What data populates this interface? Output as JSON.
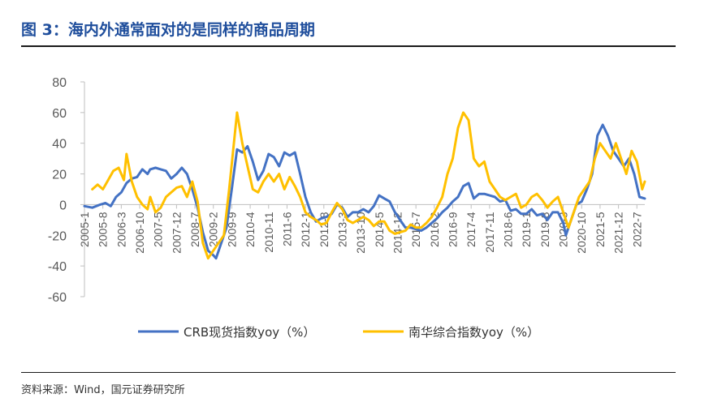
{
  "figure": {
    "title": "图 3：海内外通常面对的是同样的商品周期",
    "source": "资料来源：Wind，国元证券研究所"
  },
  "colors": {
    "crb": "#4472c4",
    "nanhua": "#ffc000",
    "axis": "#bfbfbf",
    "title": "#1f4e9c"
  },
  "chart_data": {
    "type": "line",
    "title": "",
    "xlabel": "",
    "ylabel": "",
    "ylim": [
      -60,
      80
    ],
    "yticks": [
      80,
      60,
      40,
      20,
      0,
      -20,
      -40,
      -60
    ],
    "xlim": [
      "2005-01",
      "2022-10"
    ],
    "xtick_labels": [
      "2005-1",
      "2005-8",
      "2006-3",
      "2006-10",
      "2007-5",
      "2007-12",
      "2008-7",
      "2009-2",
      "2009-9",
      "2010-4",
      "2010-11",
      "2011-6",
      "2012-1",
      "2012-8",
      "2013-3",
      "2013-10",
      "2014-5",
      "2014-12",
      "2015-7",
      "2016-2",
      "2016-9",
      "2017-4",
      "2017-11",
      "2018-6",
      "2019-1",
      "2019-8",
      "2020-3",
      "2020-10",
      "2021-5",
      "2021-12",
      "2022-7"
    ],
    "grid": false,
    "legend": "bottom",
    "series": [
      {
        "name": "CRB现货指数yoy（%）",
        "color": "#4472c4",
        "points": [
          [
            "2005-01",
            -1
          ],
          [
            "2005-04",
            -2
          ],
          [
            "2005-07",
            0
          ],
          [
            "2005-09",
            1
          ],
          [
            "2005-11",
            -1
          ],
          [
            "2006-01",
            5
          ],
          [
            "2006-03",
            8
          ],
          [
            "2006-05",
            14
          ],
          [
            "2006-07",
            17
          ],
          [
            "2006-09",
            18
          ],
          [
            "2006-11",
            23
          ],
          [
            "2007-01",
            20
          ],
          [
            "2007-02",
            23
          ],
          [
            "2007-04",
            24
          ],
          [
            "2007-06",
            23
          ],
          [
            "2007-08",
            22
          ],
          [
            "2007-10",
            17
          ],
          [
            "2007-12",
            20
          ],
          [
            "2008-02",
            24
          ],
          [
            "2008-04",
            20
          ],
          [
            "2008-06",
            10
          ],
          [
            "2008-08",
            -2
          ],
          [
            "2008-10",
            -18
          ],
          [
            "2008-12",
            -30
          ],
          [
            "2009-02",
            -33
          ],
          [
            "2009-03",
            -35
          ],
          [
            "2009-05",
            -25
          ],
          [
            "2009-07",
            -15
          ],
          [
            "2009-09",
            10
          ],
          [
            "2009-11",
            36
          ],
          [
            "2010-01",
            34
          ],
          [
            "2010-03",
            38
          ],
          [
            "2010-05",
            28
          ],
          [
            "2010-07",
            16
          ],
          [
            "2010-09",
            22
          ],
          [
            "2010-11",
            33
          ],
          [
            "2011-01",
            31
          ],
          [
            "2011-03",
            25
          ],
          [
            "2011-05",
            34
          ],
          [
            "2011-07",
            32
          ],
          [
            "2011-09",
            34
          ],
          [
            "2011-11",
            20
          ],
          [
            "2012-01",
            5
          ],
          [
            "2012-03",
            -5
          ],
          [
            "2012-05",
            -11
          ],
          [
            "2012-07",
            -9
          ],
          [
            "2012-09",
            -8
          ],
          [
            "2012-11",
            -6
          ],
          [
            "2013-01",
            0
          ],
          [
            "2013-03",
            -2
          ],
          [
            "2013-05",
            -8
          ],
          [
            "2013-07",
            -5
          ],
          [
            "2013-09",
            -5
          ],
          [
            "2013-11",
            -3
          ],
          [
            "2014-01",
            -5
          ],
          [
            "2014-03",
            -1
          ],
          [
            "2014-05",
            6
          ],
          [
            "2014-07",
            4
          ],
          [
            "2014-09",
            2
          ],
          [
            "2014-11",
            -5
          ],
          [
            "2015-01",
            -10
          ],
          [
            "2015-03",
            -15
          ],
          [
            "2015-05",
            -15
          ],
          [
            "2015-07",
            -16
          ],
          [
            "2015-09",
            -17
          ],
          [
            "2015-11",
            -15
          ],
          [
            "2016-01",
            -12
          ],
          [
            "2016-03",
            -9
          ],
          [
            "2016-05",
            -5
          ],
          [
            "2016-07",
            -2
          ],
          [
            "2016-09",
            2
          ],
          [
            "2016-11",
            5
          ],
          [
            "2017-01",
            12
          ],
          [
            "2017-03",
            14
          ],
          [
            "2017-05",
            4
          ],
          [
            "2017-07",
            7
          ],
          [
            "2017-09",
            7
          ],
          [
            "2017-11",
            6
          ],
          [
            "2018-01",
            5
          ],
          [
            "2018-03",
            2
          ],
          [
            "2018-05",
            3
          ],
          [
            "2018-07",
            -4
          ],
          [
            "2018-09",
            -3
          ],
          [
            "2018-11",
            -6
          ],
          [
            "2019-01",
            -6
          ],
          [
            "2019-03",
            -3
          ],
          [
            "2019-05",
            -7
          ],
          [
            "2019-07",
            -6
          ],
          [
            "2019-09",
            -10
          ],
          [
            "2019-11",
            -5
          ],
          [
            "2020-01",
            -5
          ],
          [
            "2020-03",
            -12
          ],
          [
            "2020-04",
            -20
          ],
          [
            "2020-06",
            -10
          ],
          [
            "2020-08",
            0
          ],
          [
            "2020-10",
            2
          ],
          [
            "2020-12",
            10
          ],
          [
            "2021-02",
            20
          ],
          [
            "2021-04",
            45
          ],
          [
            "2021-06",
            52
          ],
          [
            "2021-08",
            45
          ],
          [
            "2021-10",
            35
          ],
          [
            "2021-12",
            30
          ],
          [
            "2022-02",
            25
          ],
          [
            "2022-04",
            30
          ],
          [
            "2022-06",
            20
          ],
          [
            "2022-08",
            5
          ],
          [
            "2022-10",
            4
          ]
        ]
      },
      {
        "name": "南华综合指数yoy（%）",
        "color": "#ffc000",
        "points": [
          [
            "2005-04",
            10
          ],
          [
            "2005-06",
            13
          ],
          [
            "2005-08",
            10
          ],
          [
            "2005-10",
            16
          ],
          [
            "2005-12",
            22
          ],
          [
            "2006-02",
            24
          ],
          [
            "2006-04",
            16
          ],
          [
            "2006-05",
            33
          ],
          [
            "2006-07",
            15
          ],
          [
            "2006-09",
            5
          ],
          [
            "2006-11",
            0
          ],
          [
            "2007-01",
            -3
          ],
          [
            "2007-02",
            5
          ],
          [
            "2007-04",
            -5
          ],
          [
            "2007-06",
            -2
          ],
          [
            "2007-08",
            5
          ],
          [
            "2007-10",
            8
          ],
          [
            "2007-12",
            11
          ],
          [
            "2008-02",
            12
          ],
          [
            "2008-04",
            5
          ],
          [
            "2008-06",
            15
          ],
          [
            "2008-08",
            2
          ],
          [
            "2008-10",
            -25
          ],
          [
            "2008-12",
            -35
          ],
          [
            "2009-02",
            -30
          ],
          [
            "2009-04",
            -25
          ],
          [
            "2009-06",
            -20
          ],
          [
            "2009-08",
            10
          ],
          [
            "2009-11",
            60
          ],
          [
            "2010-01",
            40
          ],
          [
            "2010-03",
            25
          ],
          [
            "2010-05",
            10
          ],
          [
            "2010-07",
            8
          ],
          [
            "2010-09",
            15
          ],
          [
            "2010-11",
            20
          ],
          [
            "2011-01",
            15
          ],
          [
            "2011-03",
            20
          ],
          [
            "2011-05",
            10
          ],
          [
            "2011-07",
            18
          ],
          [
            "2011-09",
            12
          ],
          [
            "2011-11",
            5
          ],
          [
            "2012-01",
            -5
          ],
          [
            "2012-03",
            -8
          ],
          [
            "2012-05",
            -10
          ],
          [
            "2012-07",
            -13
          ],
          [
            "2012-09",
            -12
          ],
          [
            "2012-11",
            -5
          ],
          [
            "2013-01",
            1
          ],
          [
            "2013-03",
            -3
          ],
          [
            "2013-05",
            -10
          ],
          [
            "2013-07",
            -12
          ],
          [
            "2013-09",
            -10
          ],
          [
            "2013-11",
            -8
          ],
          [
            "2014-01",
            -10
          ],
          [
            "2014-03",
            -14
          ],
          [
            "2014-05",
            -11
          ],
          [
            "2014-07",
            -11
          ],
          [
            "2014-09",
            -17
          ],
          [
            "2014-11",
            -19
          ],
          [
            "2015-01",
            -18
          ],
          [
            "2015-03",
            -17
          ],
          [
            "2015-05",
            -13
          ],
          [
            "2015-07",
            -15
          ],
          [
            "2015-09",
            -15
          ],
          [
            "2015-11",
            -12
          ],
          [
            "2016-01",
            -8
          ],
          [
            "2016-03",
            -2
          ],
          [
            "2016-05",
            5
          ],
          [
            "2016-07",
            20
          ],
          [
            "2016-09",
            30
          ],
          [
            "2016-11",
            50
          ],
          [
            "2017-01",
            60
          ],
          [
            "2017-03",
            55
          ],
          [
            "2017-05",
            30
          ],
          [
            "2017-07",
            25
          ],
          [
            "2017-09",
            28
          ],
          [
            "2017-11",
            15
          ],
          [
            "2018-01",
            10
          ],
          [
            "2018-03",
            5
          ],
          [
            "2018-05",
            3
          ],
          [
            "2018-07",
            5
          ],
          [
            "2018-09",
            7
          ],
          [
            "2018-11",
            -2
          ],
          [
            "2019-01",
            0
          ],
          [
            "2019-03",
            5
          ],
          [
            "2019-05",
            7
          ],
          [
            "2019-07",
            3
          ],
          [
            "2019-09",
            -2
          ],
          [
            "2019-11",
            2
          ],
          [
            "2020-01",
            5
          ],
          [
            "2020-03",
            -5
          ],
          [
            "2020-05",
            -15
          ],
          [
            "2020-07",
            -5
          ],
          [
            "2020-09",
            5
          ],
          [
            "2020-11",
            10
          ],
          [
            "2021-01",
            15
          ],
          [
            "2021-03",
            30
          ],
          [
            "2021-05",
            40
          ],
          [
            "2021-07",
            35
          ],
          [
            "2021-09",
            30
          ],
          [
            "2021-11",
            40
          ],
          [
            "2022-01",
            30
          ],
          [
            "2022-03",
            20
          ],
          [
            "2022-05",
            35
          ],
          [
            "2022-07",
            28
          ],
          [
            "2022-09",
            10
          ],
          [
            "2022-10",
            15
          ]
        ]
      }
    ]
  }
}
